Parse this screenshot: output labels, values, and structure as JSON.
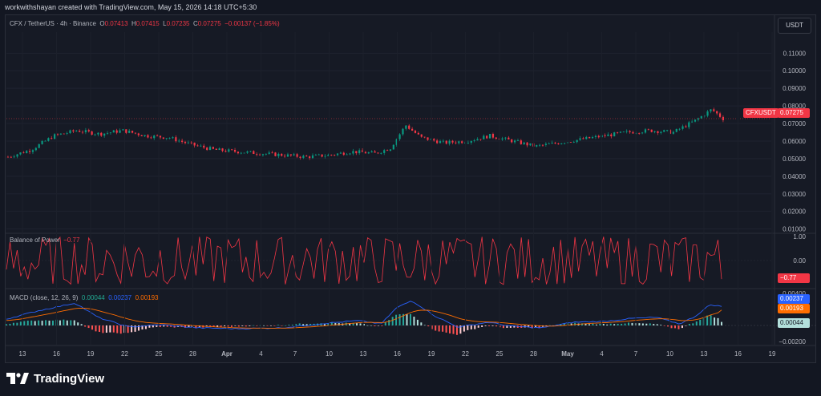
{
  "credit": "workwithshayan created with TradingView.com, May 15, 2026 14:18 UTC+5:30",
  "symbol_line": {
    "name": "CFX / TetherUS · 4h · Binance",
    "o_label": "O",
    "o": "0.07413",
    "h_label": "H",
    "h": "0.07415",
    "l_label": "L",
    "l": "0.07235",
    "c_label": "C",
    "c": "0.07275",
    "change": "−0.00137 (−1.85%)"
  },
  "currency_button": "USDT",
  "price_badge": {
    "label": "CFXUSDT",
    "value": "0.07275"
  },
  "bop_legend": {
    "name": "Balance of Power",
    "value": "−0.77"
  },
  "bop_badge": "−0.77",
  "macd_legend": {
    "name": "MACD (close, 12, 26, 9)",
    "hist": "0.00044",
    "macd": "0.00237",
    "signal": "0.00193"
  },
  "macd_badges": {
    "macd": "0.00237",
    "signal": "0.00193",
    "hist": "0.00044"
  },
  "brand": "TradingView",
  "colors": {
    "up": "#089981",
    "down": "#f23645",
    "macd": "#2962ff",
    "signal": "#ff6d00",
    "bop": "#f23645"
  },
  "chart_data": [
    {
      "type": "candlestick",
      "title": "CFX / TetherUS · 4h · Binance",
      "y_axis_ticks": [
        "0.11000",
        "0.10000",
        "0.09000",
        "0.08000",
        "0.07000",
        "0.06000",
        "0.05000",
        "0.04000",
        "0.03000",
        "0.02000",
        "0.01000"
      ],
      "ylim": [
        0.008,
        0.122
      ],
      "x_ticks": [
        "13",
        "16",
        "19",
        "22",
        "25",
        "28",
        "Apr",
        "4",
        "7",
        "10",
        "13",
        "16",
        "19",
        "22",
        "25",
        "28",
        "May",
        "4",
        "7",
        "10",
        "13",
        "16",
        "19"
      ],
      "close_path_approx": [
        [
          0,
          0.051
        ],
        [
          0.03,
          0.055
        ],
        [
          0.06,
          0.063
        ],
        [
          0.09,
          0.066
        ],
        [
          0.12,
          0.064
        ],
        [
          0.15,
          0.066
        ],
        [
          0.18,
          0.063
        ],
        [
          0.21,
          0.062
        ],
        [
          0.24,
          0.058
        ],
        [
          0.27,
          0.055
        ],
        [
          0.3,
          0.054
        ],
        [
          0.33,
          0.053
        ],
        [
          0.36,
          0.052
        ],
        [
          0.39,
          0.051
        ],
        [
          0.42,
          0.052
        ],
        [
          0.45,
          0.054
        ],
        [
          0.48,
          0.053
        ],
        [
          0.5,
          0.056
        ],
        [
          0.52,
          0.069
        ],
        [
          0.54,
          0.062
        ],
        [
          0.57,
          0.059
        ],
        [
          0.6,
          0.06
        ],
        [
          0.63,
          0.063
        ],
        [
          0.66,
          0.06
        ],
        [
          0.69,
          0.057
        ],
        [
          0.72,
          0.059
        ],
        [
          0.75,
          0.061
        ],
        [
          0.78,
          0.063
        ],
        [
          0.81,
          0.065
        ],
        [
          0.84,
          0.066
        ],
        [
          0.87,
          0.065
        ],
        [
          0.9,
          0.072
        ],
        [
          0.92,
          0.078
        ],
        [
          0.935,
          0.07275
        ]
      ],
      "last_close": 0.07275
    },
    {
      "type": "line",
      "title": "Balance of Power",
      "y_axis_ticks": [
        "1.00",
        "0.00",
        "−1.00"
      ],
      "ylim": [
        -1.1,
        1.1
      ],
      "last_value": -0.77
    },
    {
      "type": "line+bar",
      "title": "MACD (close, 12, 26, 9)",
      "y_axis_ticks": [
        "0.00400",
        "0.00000",
        "−0.00200"
      ],
      "ylim": [
        -0.0024,
        0.0044
      ],
      "series": [
        {
          "name": "MACD",
          "last": 0.00237
        },
        {
          "name": "Signal",
          "last": 0.00193
        },
        {
          "name": "Histogram",
          "last": 0.00044
        }
      ]
    }
  ]
}
